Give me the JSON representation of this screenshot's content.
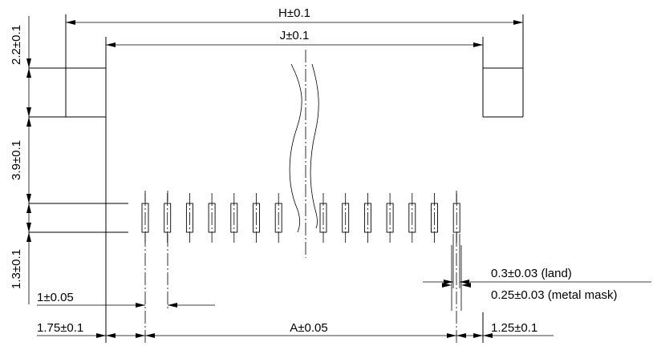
{
  "dimensions": {
    "overall_width": "H±0.1",
    "inner_width": "J±0.1",
    "top_offset": "2.2±0.1",
    "body_height": "3.9±0.1",
    "pad_length": "1.3±0.1",
    "pitch": "1±0.05",
    "left_margin": "1.75±0.1",
    "pad_span": "A±0.05",
    "right_margin": "1.25±0.1",
    "land_width": "0.3±0.03 (land)",
    "mask_width": "0.25±0.03 (metal mask)"
  }
}
